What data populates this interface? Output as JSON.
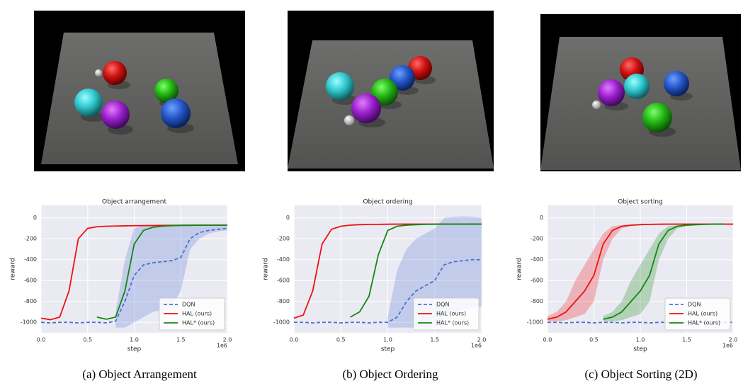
{
  "chart_data": [
    {
      "type": "line",
      "title": "Object arrangement",
      "xlabel": "step",
      "ylabel": "reward",
      "x_offset_label": "1e6",
      "x": [
        0,
        0.1,
        0.2,
        0.3,
        0.4,
        0.5,
        0.6,
        0.7,
        0.8,
        0.9,
        1.0,
        1.1,
        1.2,
        1.3,
        1.4,
        1.5,
        1.6,
        1.7,
        1.8,
        1.9,
        2.0
      ],
      "xlim": [
        0,
        2
      ],
      "xticks": [
        {
          "value": 0,
          "label": "0.0"
        },
        {
          "value": 0.5,
          "label": "0.5"
        },
        {
          "value": 1,
          "label": "1.0"
        },
        {
          "value": 1.5,
          "label": "1.5"
        },
        {
          "value": 2,
          "label": "2.0"
        }
      ],
      "ylim": [
        -1100,
        120
      ],
      "yticks": [
        0,
        -200,
        -400,
        -600,
        -800,
        -1000
      ],
      "grid": true,
      "legend": "lower right",
      "series": [
        {
          "name": "DQN",
          "color": "#4c6fd0",
          "linestyle": "dashed",
          "values": [
            -1000,
            -1005,
            -1000,
            -1000,
            -1005,
            -1000,
            -1000,
            -1005,
            -990,
            -800,
            -550,
            -450,
            -430,
            -420,
            -410,
            -380,
            -200,
            -140,
            -120,
            -110,
            -100
          ],
          "band_lower": [
            null,
            null,
            null,
            null,
            null,
            null,
            null,
            null,
            -1050,
            -1050,
            -1000,
            -950,
            -900,
            -880,
            -850,
            -700,
            -300,
            -200,
            -150,
            -130,
            -120
          ],
          "band_upper": [
            null,
            null,
            null,
            null,
            null,
            null,
            null,
            null,
            -900,
            -400,
            -100,
            -70,
            -70,
            -70,
            -70,
            -70,
            -70,
            -70,
            -70,
            -70,
            -70
          ]
        },
        {
          "name": "HAL (ours)",
          "color": "#ee1111",
          "linestyle": "solid",
          "values": [
            -960,
            -975,
            -950,
            -700,
            -200,
            -100,
            -85,
            -80,
            -78,
            -76,
            -75,
            -74,
            -73,
            -72,
            -72,
            -71,
            -71,
            -70,
            -70,
            -70,
            -70
          ]
        },
        {
          "name": "HAL* (ours)",
          "color": "#118811",
          "linestyle": "solid",
          "values": [
            null,
            null,
            null,
            null,
            null,
            null,
            -950,
            -970,
            -950,
            -700,
            -250,
            -120,
            -90,
            -80,
            -75,
            -72,
            -71,
            -70,
            -70,
            -70,
            -70
          ]
        }
      ]
    },
    {
      "type": "line",
      "title": "Object ordering",
      "xlabel": "step",
      "ylabel": "reward",
      "x_offset_label": "1e6",
      "x": [
        0,
        0.1,
        0.2,
        0.3,
        0.4,
        0.5,
        0.6,
        0.7,
        0.8,
        0.9,
        1.0,
        1.1,
        1.2,
        1.3,
        1.4,
        1.5,
        1.6,
        1.7,
        1.8,
        1.9,
        2.0
      ],
      "xlim": [
        0,
        2
      ],
      "xticks": [
        {
          "value": 0,
          "label": "0.0"
        },
        {
          "value": 0.5,
          "label": "0.5"
        },
        {
          "value": 1,
          "label": "1.0"
        },
        {
          "value": 1.5,
          "label": "1.5"
        },
        {
          "value": 2,
          "label": "2.0"
        }
      ],
      "ylim": [
        -1100,
        120
      ],
      "yticks": [
        0,
        -200,
        -400,
        -600,
        -800,
        -1000
      ],
      "grid": true,
      "legend": "lower right",
      "series": [
        {
          "name": "DQN",
          "color": "#4c6fd0",
          "linestyle": "dashed",
          "values": [
            -1000,
            -1000,
            -1005,
            -1000,
            -1000,
            -1005,
            -1000,
            -1000,
            -1005,
            -1000,
            -1000,
            -950,
            -800,
            -700,
            -650,
            -600,
            -450,
            -420,
            -410,
            -400,
            -400
          ],
          "band_lower": [
            null,
            null,
            null,
            null,
            null,
            null,
            null,
            null,
            null,
            null,
            -1050,
            -1050,
            -1050,
            -1050,
            -1050,
            -1050,
            -950,
            -900,
            -880,
            -860,
            -850
          ],
          "band_upper": [
            null,
            null,
            null,
            null,
            null,
            null,
            null,
            null,
            null,
            null,
            -950,
            -500,
            -300,
            -200,
            -150,
            -100,
            0,
            10,
            15,
            10,
            0
          ]
        },
        {
          "name": "HAL (ours)",
          "color": "#ee1111",
          "linestyle": "solid",
          "values": [
            -960,
            -930,
            -700,
            -250,
            -110,
            -80,
            -70,
            -65,
            -63,
            -62,
            -61,
            -60,
            -60,
            -60,
            -60,
            -60,
            -60,
            -60,
            -60,
            -60,
            -60
          ]
        },
        {
          "name": "HAL* (ours)",
          "color": "#118811",
          "linestyle": "solid",
          "values": [
            null,
            null,
            null,
            null,
            null,
            null,
            -950,
            -900,
            -750,
            -350,
            -120,
            -80,
            -70,
            -65,
            -62,
            -61,
            -60,
            -60,
            -60,
            -60,
            -60
          ]
        }
      ]
    },
    {
      "type": "line",
      "title": "Object sorting",
      "xlabel": "step",
      "ylabel": "reward",
      "x_offset_label": "1e6",
      "x": [
        0,
        0.1,
        0.2,
        0.3,
        0.4,
        0.5,
        0.6,
        0.7,
        0.8,
        0.9,
        1.0,
        1.1,
        1.2,
        1.3,
        1.4,
        1.5,
        1.6,
        1.7,
        1.8,
        1.9,
        2.0
      ],
      "xlim": [
        0,
        2
      ],
      "xticks": [
        {
          "value": 0,
          "label": "0.0"
        },
        {
          "value": 0.5,
          "label": "0.5"
        },
        {
          "value": 1,
          "label": "1.0"
        },
        {
          "value": 1.5,
          "label": "1.5"
        },
        {
          "value": 2,
          "label": "2.0"
        }
      ],
      "ylim": [
        -1100,
        120
      ],
      "yticks": [
        0,
        -200,
        -400,
        -600,
        -800,
        -1000
      ],
      "grid": true,
      "legend": "lower right",
      "series": [
        {
          "name": "DQN",
          "color": "#4c6fd0",
          "linestyle": "dashed",
          "values": [
            -1000,
            -1000,
            -1005,
            -1000,
            -1000,
            -1005,
            -1000,
            -1000,
            -1005,
            -1000,
            -1000,
            -1005,
            -1000,
            -1000,
            -1005,
            -1000,
            -1000,
            -1005,
            -1000,
            -1000,
            -1000
          ]
        },
        {
          "name": "HAL (ours)",
          "color": "#ee1111",
          "linestyle": "solid",
          "values": [
            -970,
            -950,
            -900,
            -800,
            -700,
            -550,
            -250,
            -120,
            -80,
            -70,
            -65,
            -62,
            -61,
            -60,
            -60,
            -60,
            -60,
            -60,
            -60,
            -60,
            -60
          ],
          "band_lower": [
            -990,
            -990,
            -980,
            -950,
            -920,
            -800,
            -400,
            -200,
            -100,
            -80,
            -70,
            -65,
            -63,
            -62,
            -62,
            -62,
            -62,
            -62,
            -62,
            -62,
            -62
          ],
          "band_upper": [
            -940,
            -900,
            -800,
            -600,
            -450,
            -300,
            -150,
            -80,
            -70,
            -65,
            -62,
            -60,
            -58,
            -58,
            -58,
            -58,
            -58,
            -58,
            -58,
            -58,
            -58
          ]
        },
        {
          "name": "HAL* (ours)",
          "color": "#118811",
          "linestyle": "solid",
          "values": [
            null,
            null,
            null,
            null,
            null,
            null,
            -970,
            -950,
            -900,
            -800,
            -700,
            -550,
            -250,
            -120,
            -80,
            -70,
            -65,
            -62,
            -60,
            -60,
            null
          ],
          "band_lower": [
            null,
            null,
            null,
            null,
            null,
            null,
            -990,
            -990,
            -980,
            -950,
            -920,
            -800,
            -400,
            -200,
            -100,
            -80,
            -70,
            -65,
            -62,
            -62,
            null
          ],
          "band_upper": [
            null,
            null,
            null,
            null,
            null,
            null,
            -940,
            -900,
            -800,
            -600,
            -450,
            -300,
            -150,
            -80,
            -70,
            -65,
            -62,
            -60,
            -58,
            -58,
            null
          ]
        }
      ]
    }
  ],
  "captions": [
    "(a) Object Arrangement",
    "(b) Object Ordering",
    "(c) Object Sorting (2D)"
  ]
}
